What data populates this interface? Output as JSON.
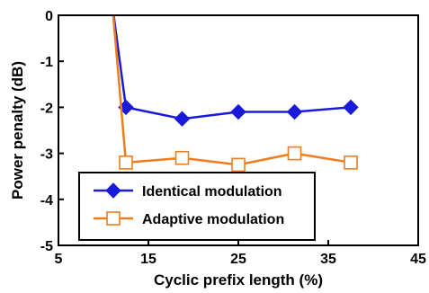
{
  "chart_data": {
    "type": "line",
    "title": "",
    "xlabel": "Cyclic prefix length (%)",
    "ylabel": "Power penalty (dB)",
    "xlim": [
      5,
      45
    ],
    "ylim": [
      -5,
      0
    ],
    "x_ticks": [
      "5",
      "15",
      "25",
      "35",
      "45"
    ],
    "y_ticks": [
      "0",
      "-1",
      "-2",
      "-3",
      "-4",
      "-5"
    ],
    "grid": false,
    "legend_position": "bottom-left",
    "series": [
      {
        "name": "Identical modulation",
        "color": "#1a1adb",
        "marker": "filled-diamond",
        "x": [
          12.5,
          18.75,
          25,
          31.25,
          37.5
        ],
        "y": [
          -2.0,
          -2.25,
          -2.1,
          -2.1,
          -2.0
        ],
        "lead_in": {
          "x": [
            11.0
          ],
          "y": [
            0.2
          ]
        }
      },
      {
        "name": "Adaptive modulation",
        "color": "#ef7d1a",
        "marker": "open-square",
        "x": [
          12.5,
          18.75,
          25,
          31.25,
          37.5
        ],
        "y": [
          -3.2,
          -3.1,
          -3.25,
          -3.0,
          -3.2
        ],
        "lead_in": {
          "x": [
            11.0
          ],
          "y": [
            0.2
          ]
        }
      }
    ]
  }
}
